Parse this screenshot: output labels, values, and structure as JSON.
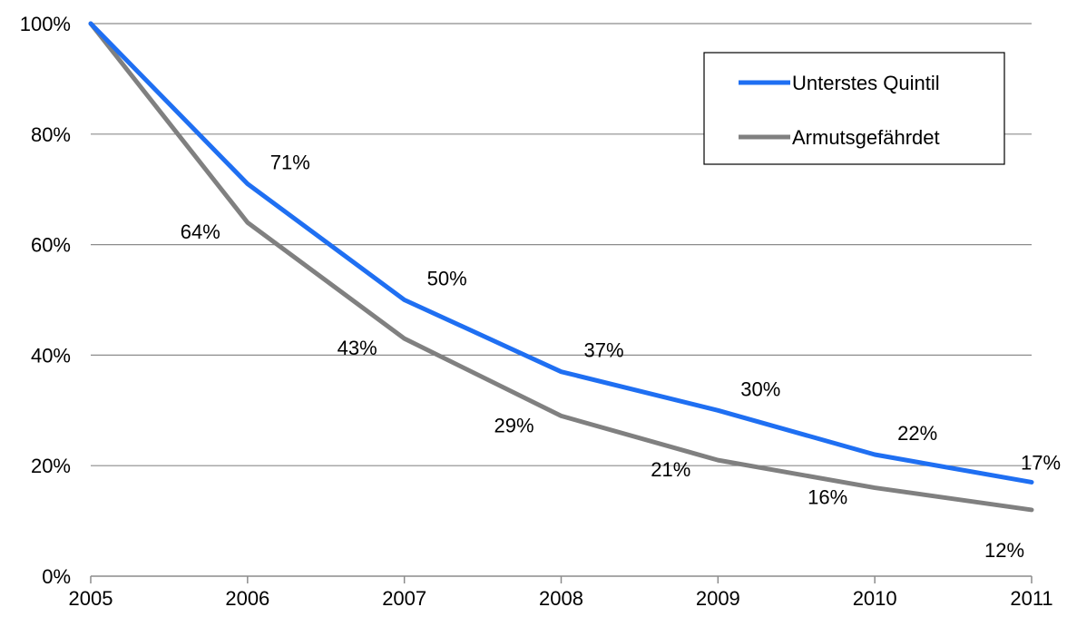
{
  "chart_data": {
    "type": "line",
    "title": "",
    "xlabel": "",
    "ylabel": "",
    "x": [
      "2005",
      "2006",
      "2007",
      "2008",
      "2009",
      "2010",
      "2011"
    ],
    "ylim": [
      0,
      100
    ],
    "y_ticks": [
      0,
      20,
      40,
      60,
      80,
      100
    ],
    "y_tick_labels": [
      "0%",
      "20%",
      "40%",
      "60%",
      "80%",
      "100%"
    ],
    "grid": "horizontal",
    "legend": "top-right",
    "series": [
      {
        "name": "Unterstes Quintil",
        "color": "#1f6ff2",
        "values": [
          100,
          71,
          50,
          37,
          30,
          22,
          17
        ],
        "labels": [
          "",
          "71%",
          "50%",
          "37%",
          "30%",
          "22%",
          "17%"
        ]
      },
      {
        "name": "Armutsgefährdet",
        "color": "#808080",
        "values": [
          100,
          64,
          43,
          29,
          21,
          16,
          12
        ],
        "labels": [
          "",
          "64%",
          "43%",
          "29%",
          "21%",
          "16%",
          "12%"
        ]
      }
    ]
  }
}
